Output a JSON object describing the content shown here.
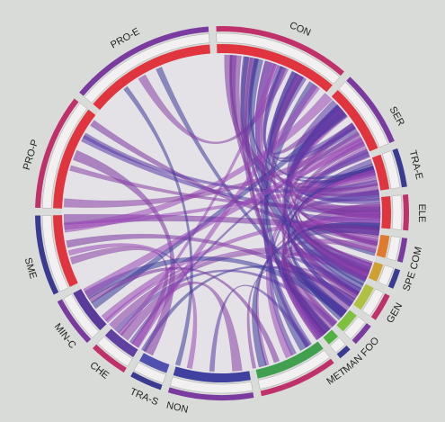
{
  "nodes": [
    {
      "label": "CON"
    },
    {
      "label": "SER"
    },
    {
      "label": "TRA-E"
    },
    {
      "label": "ELE"
    },
    {
      "label": "COM"
    },
    {
      "label": "SPE"
    },
    {
      "label": "GEN"
    },
    {
      "label": "FOO"
    },
    {
      "label": "MAN"
    },
    {
      "label": "MET"
    },
    {
      "label": "NON"
    },
    {
      "label": "TRA-S"
    },
    {
      "label": "CHE"
    },
    {
      "label": "MIN-C"
    },
    {
      "label": "SME"
    },
    {
      "label": "PRO-P"
    },
    {
      "label": "PRO-E"
    }
  ]
}
